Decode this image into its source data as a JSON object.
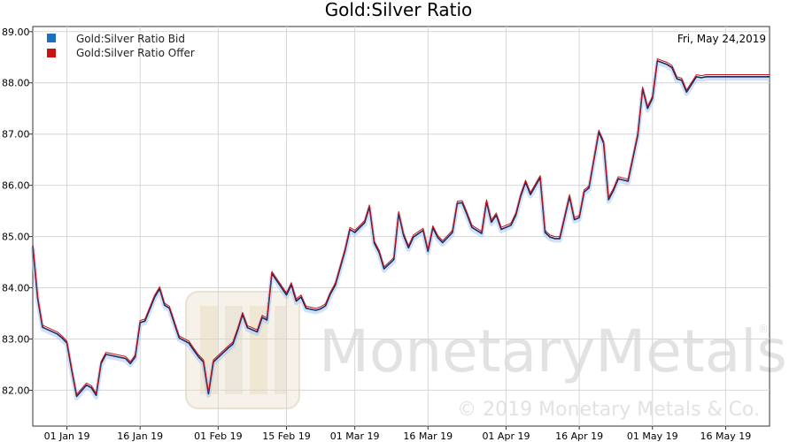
{
  "chart_data": {
    "type": "line",
    "title": "Gold:Silver Ratio",
    "date_label": "Fri, May 24,2019",
    "ylim": [
      81.3,
      89.1
    ],
    "y_ticks": [
      {
        "v": 82.0,
        "label": "82.00"
      },
      {
        "v": 83.0,
        "label": "83.00"
      },
      {
        "v": 84.0,
        "label": "84.00"
      },
      {
        "v": 85.0,
        "label": "85.00"
      },
      {
        "v": 86.0,
        "label": "86.00"
      },
      {
        "v": 87.0,
        "label": "87.00"
      },
      {
        "v": 88.0,
        "label": "88.00"
      },
      {
        "v": 89.0,
        "label": "89.00"
      }
    ],
    "x_ticks": [
      {
        "date": "2019-01-01",
        "label": "01 Jan 19"
      },
      {
        "date": "2019-01-16",
        "label": "16 Jan 19"
      },
      {
        "date": "2019-02-01",
        "label": "01 Feb 19"
      },
      {
        "date": "2019-02-15",
        "label": "15 Feb 19"
      },
      {
        "date": "2019-03-01",
        "label": "01 Mar 19"
      },
      {
        "date": "2019-03-16",
        "label": "16 Mar 19"
      },
      {
        "date": "2019-04-01",
        "label": "01 Apr 19"
      },
      {
        "date": "2019-04-16",
        "label": "16 Apr 19"
      },
      {
        "date": "2019-05-01",
        "label": "01 May 19"
      },
      {
        "date": "2019-05-16",
        "label": "16 May 19"
      }
    ],
    "xlim": [
      "2018-12-25",
      "2019-05-25"
    ],
    "series": [
      {
        "name": "Gold:Silver Ratio Bid",
        "color": "#1f6fc1"
      },
      {
        "name": "Gold:Silver Ratio Offer",
        "color": "#cc1111"
      }
    ],
    "x": [
      "2018-12-25",
      "2018-12-26",
      "2018-12-27",
      "2018-12-30",
      "2018-12-31",
      "2019-01-01",
      "2019-01-02",
      "2019-01-03",
      "2019-01-05",
      "2019-01-06",
      "2019-01-07",
      "2019-01-08",
      "2019-01-09",
      "2019-01-10",
      "2019-01-13",
      "2019-01-14",
      "2019-01-15",
      "2019-01-16",
      "2019-01-17",
      "2019-01-19",
      "2019-01-20",
      "2019-01-21",
      "2019-01-22",
      "2019-01-24",
      "2019-01-26",
      "2019-01-27",
      "2019-01-28",
      "2019-01-29",
      "2019-01-30",
      "2019-01-31",
      "2019-02-03",
      "2019-02-04",
      "2019-02-05",
      "2019-02-06",
      "2019-02-07",
      "2019-02-09",
      "2019-02-10",
      "2019-02-11",
      "2019-02-12",
      "2019-02-13",
      "2019-02-15",
      "2019-02-16",
      "2019-02-17",
      "2019-02-18",
      "2019-02-19",
      "2019-02-21",
      "2019-02-22",
      "2019-02-23",
      "2019-02-24",
      "2019-02-25",
      "2019-02-27",
      "2019-02-28",
      "2019-03-01",
      "2019-03-03",
      "2019-03-04",
      "2019-03-05",
      "2019-03-06",
      "2019-03-07",
      "2019-03-09",
      "2019-03-10",
      "2019-03-11",
      "2019-03-12",
      "2019-03-13",
      "2019-03-15",
      "2019-03-16",
      "2019-03-17",
      "2019-03-18",
      "2019-03-19",
      "2019-03-21",
      "2019-03-22",
      "2019-03-23",
      "2019-03-24",
      "2019-03-25",
      "2019-03-27",
      "2019-03-28",
      "2019-03-29",
      "2019-03-30",
      "2019-03-31",
      "2019-04-02",
      "2019-04-03",
      "2019-04-04",
      "2019-04-05",
      "2019-04-06",
      "2019-04-08",
      "2019-04-09",
      "2019-04-10",
      "2019-04-11",
      "2019-04-12",
      "2019-04-14",
      "2019-04-15",
      "2019-04-16",
      "2019-04-17",
      "2019-04-18",
      "2019-04-20",
      "2019-04-21",
      "2019-04-22",
      "2019-04-23",
      "2019-04-24",
      "2019-04-26",
      "2019-04-28",
      "2019-04-29",
      "2019-04-30",
      "2019-05-01",
      "2019-05-02",
      "2019-05-04",
      "2019-05-05",
      "2019-05-06",
      "2019-05-07",
      "2019-05-08",
      "2019-05-10",
      "2019-05-11",
      "2019-05-12",
      "2019-05-13",
      "2019-05-14",
      "2019-05-16",
      "2019-05-17",
      "2019-05-18",
      "2019-05-20",
      "2019-05-21",
      "2019-05-22",
      "2019-05-23",
      "2019-05-24",
      "2019-05-25"
    ],
    "bid": [
      84.82,
      83.8,
      83.23,
      83.1,
      83.02,
      82.92,
      82.38,
      81.88,
      82.1,
      82.05,
      81.9,
      82.52,
      82.7,
      82.68,
      82.62,
      82.52,
      82.65,
      83.32,
      83.35,
      83.82,
      83.98,
      83.66,
      83.6,
      83.02,
      82.92,
      82.78,
      82.65,
      82.55,
      81.93,
      82.55,
      82.82,
      82.9,
      83.17,
      83.48,
      83.22,
      83.14,
      83.42,
      83.37,
      84.28,
      84.14,
      83.86,
      84.06,
      83.74,
      83.82,
      83.6,
      83.56,
      83.59,
      83.65,
      83.88,
      84.05,
      84.72,
      85.14,
      85.08,
      85.27,
      85.58,
      84.87,
      84.69,
      84.37,
      84.55,
      85.45,
      85.02,
      84.78,
      84.99,
      85.12,
      84.71,
      85.17,
      84.98,
      84.88,
      85.08,
      85.65,
      85.66,
      85.43,
      85.18,
      85.06,
      85.68,
      85.28,
      85.42,
      85.14,
      85.22,
      85.42,
      85.79,
      86.06,
      85.82,
      86.15,
      85.08,
      84.99,
      84.96,
      84.96,
      85.78,
      85.33,
      85.37,
      85.87,
      85.95,
      87.04,
      86.82,
      85.72,
      85.9,
      86.13,
      86.08,
      86.98,
      87.88,
      87.5,
      87.7,
      88.43,
      88.36,
      88.3,
      88.08,
      88.05,
      87.82,
      88.12,
      88.1,
      88.12,
      88.12,
      88.12,
      88.12,
      88.12,
      88.12,
      88.12,
      88.12,
      88.12,
      88.12,
      88.12,
      88.12
    ],
    "offer": [
      84.86,
      83.84,
      83.27,
      83.14,
      83.06,
      82.96,
      82.42,
      81.92,
      82.14,
      82.09,
      81.94,
      82.56,
      82.74,
      82.72,
      82.66,
      82.56,
      82.69,
      83.36,
      83.39,
      83.86,
      84.02,
      83.7,
      83.64,
      83.06,
      82.96,
      82.82,
      82.69,
      82.59,
      81.97,
      82.59,
      82.86,
      82.94,
      83.21,
      83.52,
      83.26,
      83.18,
      83.46,
      83.41,
      84.32,
      84.18,
      83.9,
      84.1,
      83.78,
      83.86,
      83.64,
      83.6,
      83.63,
      83.69,
      83.92,
      84.09,
      84.76,
      85.18,
      85.12,
      85.31,
      85.62,
      84.91,
      84.73,
      84.41,
      84.59,
      85.49,
      85.06,
      84.82,
      85.03,
      85.16,
      84.75,
      85.21,
      85.02,
      84.92,
      85.12,
      85.69,
      85.7,
      85.47,
      85.22,
      85.1,
      85.72,
      85.32,
      85.46,
      85.18,
      85.26,
      85.46,
      85.83,
      86.1,
      85.86,
      86.19,
      85.12,
      85.03,
      85.0,
      85.0,
      85.82,
      85.37,
      85.41,
      85.91,
      85.99,
      87.08,
      86.86,
      85.76,
      85.94,
      86.17,
      86.12,
      87.02,
      87.92,
      87.54,
      87.74,
      88.47,
      88.4,
      88.34,
      88.12,
      88.09,
      87.86,
      88.16,
      88.14,
      88.16,
      88.16,
      88.16,
      88.16,
      88.16,
      88.16,
      88.16,
      88.16,
      88.16,
      88.16,
      88.16,
      88.16
    ]
  },
  "watermark": {
    "brand": "MonetaryMetals",
    "copyright": "© 2019 Monetary Metals & Co.",
    "registered": "®"
  }
}
